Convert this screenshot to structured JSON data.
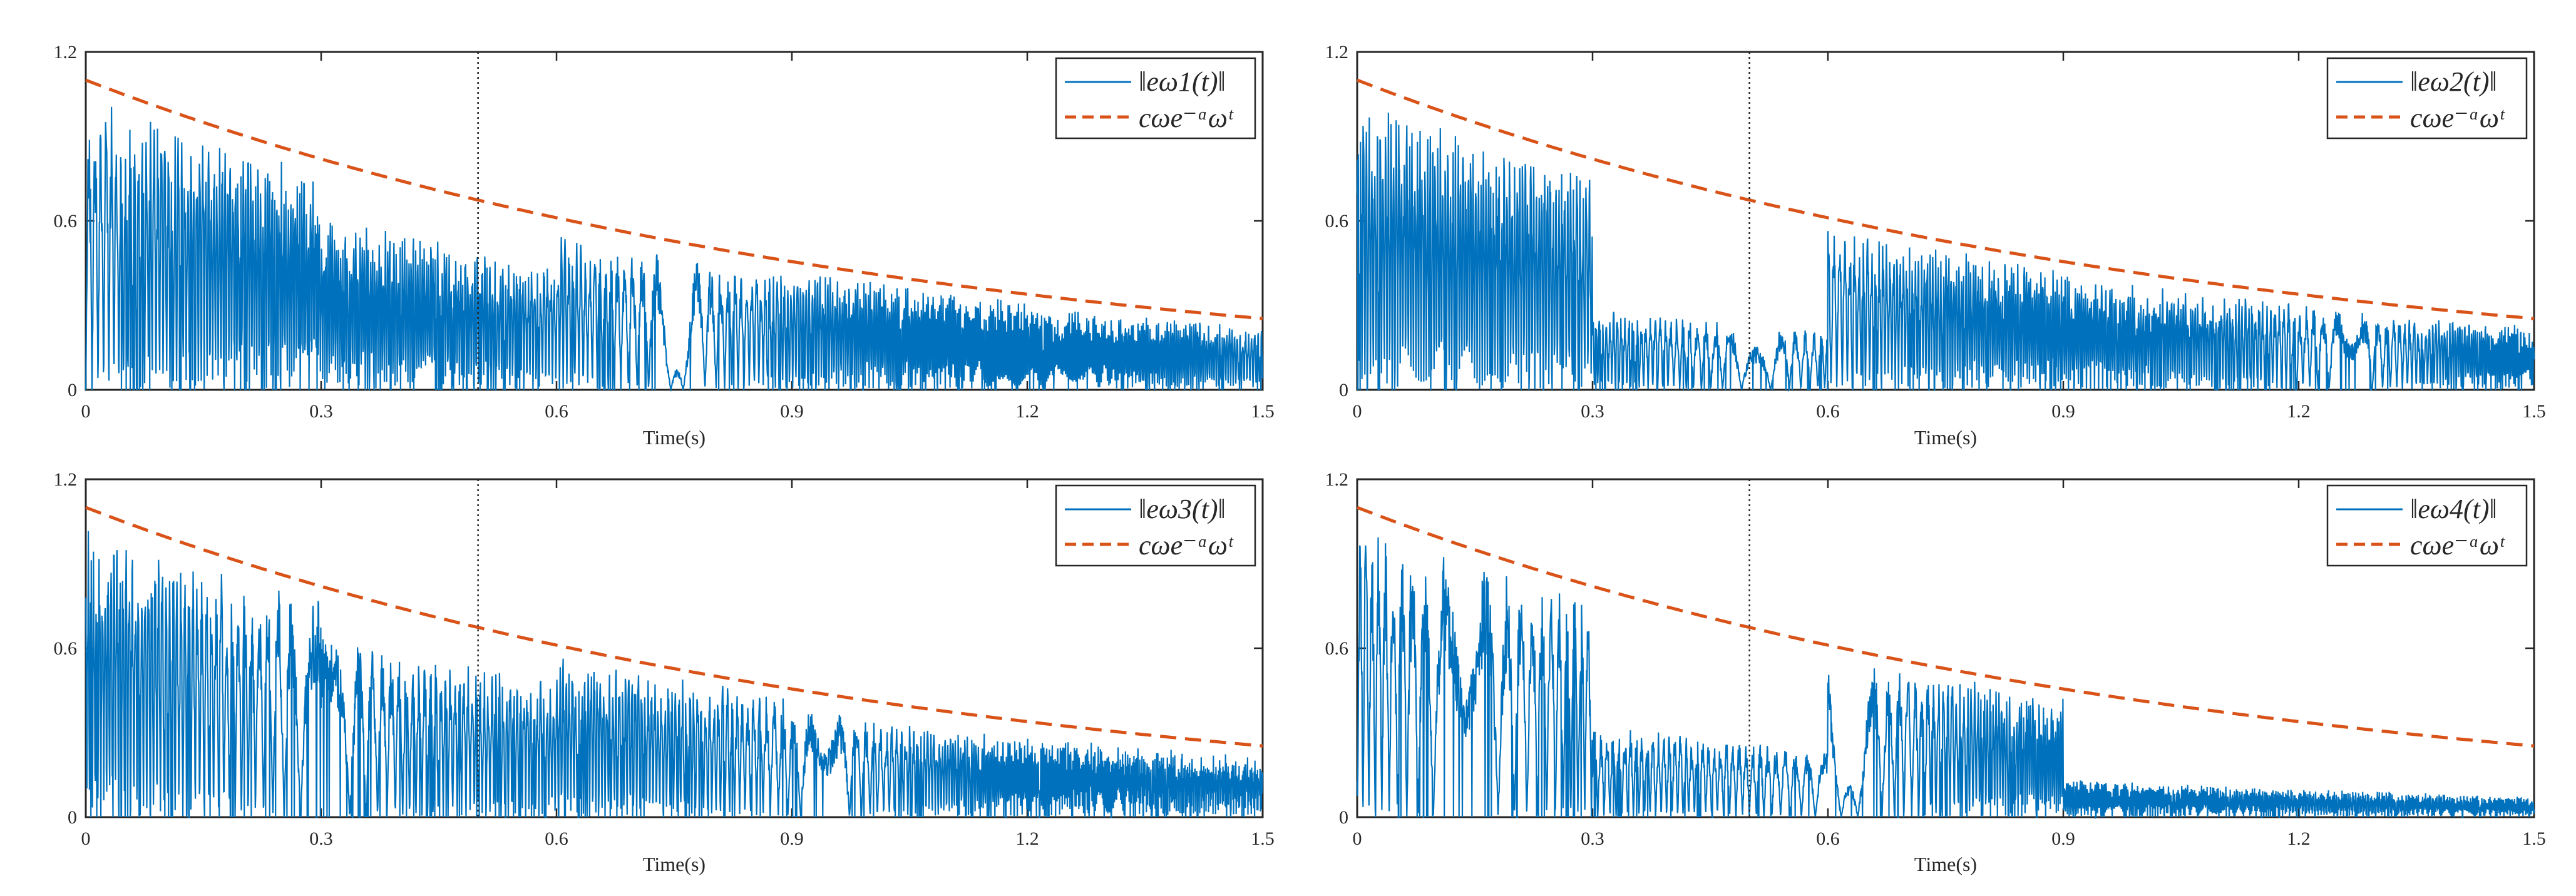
{
  "chart_data": [
    {
      "type": "line",
      "xlabel": "Time(s)",
      "xlim": [
        0,
        1.5
      ],
      "ylim": [
        0,
        1.2
      ],
      "xticks": [
        "0",
        "0.3",
        "0.6",
        "0.9",
        "1.2",
        "1.5"
      ],
      "yticks": [
        "0",
        "0.6",
        "1.2"
      ],
      "switch_time": 0.5,
      "legend": {
        "location": "top-right",
        "entries": [
          "‖eω1(t)‖",
          "cωe⁻ᵅωᵗ"
        ]
      },
      "series": [
        {
          "name": "‖eω1(t)‖",
          "color": "#0072BD",
          "style": "solid",
          "envelope_coverage": [
            0.95,
            0.75,
            0.9,
            0.95,
            0.9
          ]
        },
        {
          "name": "cωe⁻ᵅωᵗ",
          "color": "#D95319",
          "style": "dashed",
          "c": 1.1,
          "alpha": 0.98
        }
      ]
    },
    {
      "type": "line",
      "xlabel": "Time(s)",
      "xlim": [
        0,
        1.5
      ],
      "ylim": [
        0,
        1.2
      ],
      "xticks": [
        "0",
        "0.3",
        "0.6",
        "0.9",
        "1.2",
        "1.5"
      ],
      "yticks": [
        "0",
        "0.6",
        "1.2"
      ],
      "switch_time": 0.5,
      "legend": {
        "location": "top-right",
        "entries": [
          "‖eω2(t)‖",
          "cωe⁻ᵅωᵗ"
        ]
      },
      "series": [
        {
          "name": "‖eω2(t)‖",
          "color": "#0072BD",
          "style": "solid",
          "envelope_coverage": [
            0.95,
            0.35,
            0.95,
            0.9,
            0.9
          ]
        },
        {
          "name": "cωe⁻ᵅωᵗ",
          "color": "#D95319",
          "style": "dashed",
          "c": 1.1,
          "alpha": 0.98
        }
      ]
    },
    {
      "type": "line",
      "xlabel": "Time(s)",
      "xlim": [
        0,
        1.5
      ],
      "ylim": [
        0,
        1.2
      ],
      "xticks": [
        "0",
        "0.3",
        "0.6",
        "0.9",
        "1.2",
        "1.5"
      ],
      "yticks": [
        "0",
        "0.6",
        "1.2"
      ],
      "switch_time": 0.5,
      "legend": {
        "location": "top-right",
        "entries": [
          "‖eω3(t)‖",
          "cωe⁻ᵅωᵗ"
        ]
      },
      "series": [
        {
          "name": "‖eω3(t)‖",
          "color": "#0072BD",
          "style": "solid",
          "envelope_coverage": [
            0.95,
            0.8,
            0.95,
            0.85,
            0.85
          ]
        },
        {
          "name": "cωe⁻ᵅωᵗ",
          "color": "#D95319",
          "style": "dashed",
          "c": 1.1,
          "alpha": 0.98
        }
      ]
    },
    {
      "type": "line",
      "xlabel": "Time(s)",
      "xlim": [
        0,
        1.5
      ],
      "ylim": [
        0,
        1.2
      ],
      "xticks": [
        "0",
        "0.3",
        "0.6",
        "0.9",
        "1.2",
        "1.5"
      ],
      "yticks": [
        "0",
        "0.6",
        "1.2"
      ],
      "switch_time": 0.5,
      "legend": {
        "location": "top-right",
        "entries": [
          "‖eω4(t)‖",
          "cωe⁻ᵅωᵗ"
        ]
      },
      "series": [
        {
          "name": "‖eω4(t)‖",
          "color": "#0072BD",
          "style": "solid",
          "envelope_coverage": [
            0.95,
            0.4,
            0.95,
            0.3,
            0.3
          ]
        },
        {
          "name": "cωe⁻ᵅωᵗ",
          "color": "#D95319",
          "style": "dashed",
          "c": 1.1,
          "alpha": 0.98
        }
      ]
    }
  ]
}
